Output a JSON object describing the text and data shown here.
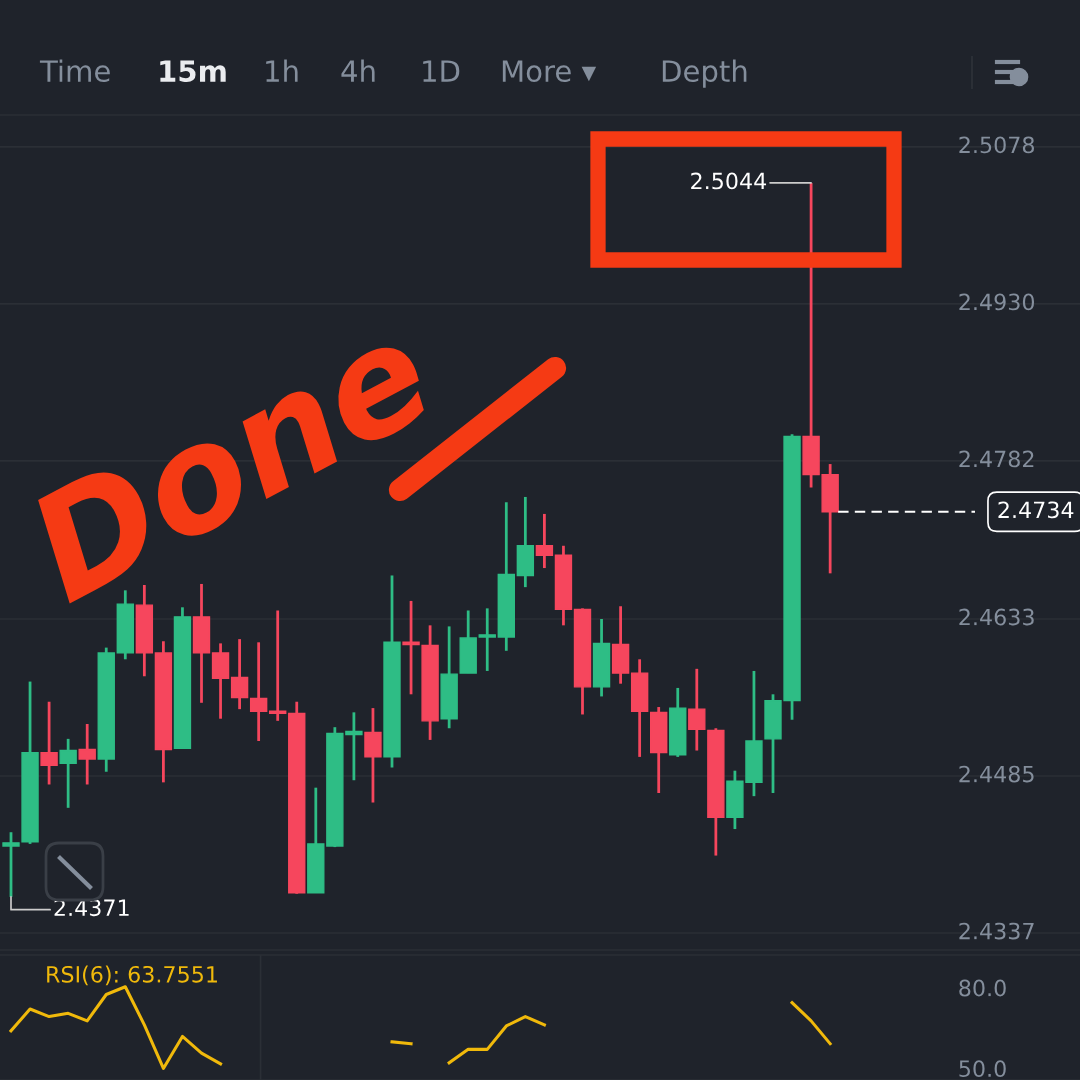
{
  "chart_data": [
    {
      "type": "other",
      "annotations": [
        "Time",
        "15m",
        "1h",
        "4h",
        "1D",
        "More ▾",
        "Depth"
      ]
    },
    {
      "type": "candlestick",
      "categories": [
        null,
        null,
        null,
        null,
        null,
        null,
        null,
        null,
        null,
        null,
        null,
        null,
        null,
        null,
        null,
        null,
        null,
        null,
        null,
        null,
        null,
        null,
        null,
        null,
        null,
        null,
        null,
        null,
        null,
        null,
        null,
        null,
        null,
        null,
        null,
        null,
        null,
        null,
        null,
        null,
        null,
        null,
        null,
        null
      ],
      "ohlc": [
        [
          2.4419,
          2.4432,
          2.4371,
          2.4422
        ],
        [
          2.4423,
          2.4574,
          2.4421,
          2.4507
        ],
        [
          2.4507,
          2.4555,
          2.4477,
          2.4495
        ],
        [
          2.4497,
          2.452,
          2.4455,
          2.4509
        ],
        [
          2.451,
          2.4534,
          2.4477,
          2.4501
        ],
        [
          2.4501,
          2.4606,
          2.4489,
          2.4601
        ],
        [
          2.4601,
          2.466,
          2.4595,
          2.4647
        ],
        [
          2.4646,
          2.4665,
          2.4579,
          2.4601
        ],
        [
          2.4601,
          2.4612,
          2.4479,
          2.451
        ],
        [
          2.4511,
          2.4644,
          2.4511,
          2.4635
        ],
        [
          2.4635,
          2.4666,
          2.4554,
          2.4601
        ],
        [
          2.4601,
          2.461,
          2.4539,
          2.4577
        ],
        [
          2.4578,
          2.4614,
          2.4548,
          2.4559
        ],
        [
          2.4558,
          2.4611,
          2.4518,
          2.4546
        ],
        [
          2.4546,
          2.4641,
          2.4537,
          2.4544
        ],
        [
          2.4544,
          2.4555,
          2.4374,
          2.4375
        ],
        [
          2.4375,
          2.4474,
          2.4375,
          2.4421
        ],
        [
          2.4419,
          2.4531,
          2.4418,
          2.4525
        ],
        [
          2.4524,
          2.4545,
          2.4481,
          2.4527
        ],
        [
          2.4526,
          2.4549,
          2.446,
          2.4503
        ],
        [
          2.4503,
          2.4674,
          2.4493,
          2.4611
        ],
        [
          2.4611,
          2.465,
          2.4562,
          2.4609
        ],
        [
          2.4608,
          2.4627,
          2.4519,
          2.4537
        ],
        [
          2.4539,
          2.4626,
          2.453,
          2.4581
        ],
        [
          2.4582,
          2.4641,
          2.4582,
          2.4615
        ],
        [
          2.4616,
          2.4643,
          2.4584,
          2.4618
        ],
        [
          2.4616,
          2.4743,
          2.4603,
          2.4675
        ],
        [
          2.4674,
          2.4748,
          2.4663,
          2.4702
        ],
        [
          2.4702,
          2.4732,
          2.4681,
          2.4693
        ],
        [
          2.4693,
          2.4702,
          2.4627,
          2.4642
        ],
        [
          2.4642,
          2.4643,
          2.4543,
          2.4569
        ],
        [
          2.4569,
          2.4633,
          2.456,
          2.461
        ],
        [
          2.4609,
          2.4645,
          2.4572,
          2.4582
        ],
        [
          2.4582,
          2.4595,
          2.4503,
          2.4546
        ],
        [
          2.4545,
          2.455,
          2.4469,
          2.4507
        ],
        [
          2.4505,
          2.4568,
          2.4503,
          2.4549
        ],
        [
          2.4548,
          2.4586,
          2.4509,
          2.4529
        ],
        [
          2.4528,
          2.453,
          2.441,
          2.4446
        ],
        [
          2.4446,
          2.449,
          2.4435,
          2.448
        ],
        [
          2.4479,
          2.4584,
          2.4466,
          2.4518
        ],
        [
          2.452,
          2.4562,
          2.4469,
          2.4556
        ],
        [
          2.4556,
          2.4807,
          2.4538,
          2.4805
        ],
        [
          2.4805,
          2.5044,
          2.4757,
          2.4769
        ],
        [
          2.4769,
          2.4779,
          2.4676,
          2.4734
        ]
      ],
      "colors": [
        "#2ebd85",
        "#2ebd85",
        "#f6465d",
        "#2ebd85",
        "#f6465d",
        "#2ebd85",
        "#2ebd85",
        "#f6465d",
        "#f6465d",
        "#2ebd85",
        "#f6465d",
        "#f6465d",
        "#f6465d",
        "#f6465d",
        "#f6465d",
        "#f6465d",
        "#2ebd85",
        "#2ebd85",
        "#2ebd85",
        "#f6465d",
        "#2ebd85",
        "#f6465d",
        "#f6465d",
        "#2ebd85",
        "#2ebd85",
        "#2ebd85",
        "#2ebd85",
        "#2ebd85",
        "#f6465d",
        "#f6465d",
        "#f6465d",
        "#2ebd85",
        "#f6465d",
        "#f6465d",
        "#f6465d",
        "#2ebd85",
        "#f6465d",
        "#f6465d",
        "#2ebd85",
        "#2ebd85",
        "#2ebd85",
        "#2ebd85",
        "#f6465d",
        "#f6465d"
      ],
      "ylim": [
        2.4321,
        2.5108
      ],
      "yticks": [
        2.4337,
        2.4485,
        2.4633,
        2.4782,
        {
          "value": 2.493,
          "label": "2.4930"
        },
        2.5078
      ],
      "tick_labels": "y",
      "grid": "y",
      "ref_lines": [
        {
          "axis": "y",
          "value": 2.4734,
          "label": "2.4734",
          "color": "#ffffff",
          "line_style": "dashed"
        }
      ],
      "annotations": [
        "Done",
        "2.5044",
        "2.4371"
      ]
    },
    {
      "type": "line",
      "categories": [
        null,
        null,
        null,
        null,
        null,
        null,
        null,
        null,
        null,
        null,
        null,
        null,
        null,
        null,
        null,
        null,
        null,
        null,
        null,
        null,
        null,
        null,
        null,
        null,
        null,
        null,
        null,
        null,
        null,
        null,
        null,
        null,
        null,
        null,
        null,
        null,
        null,
        null,
        null,
        null,
        null,
        null,
        null,
        null
      ],
      "series": [
        {
          "color": "#f0b90b",
          "values": [
            64.8,
            72.9,
            70.1,
            71.3,
            68.5,
            78.3,
            81.2,
            67.0,
            50.8,
            62.7,
            56.5,
            52.5,
            null,
            null,
            null,
            null,
            null,
            null,
            null,
            null,
            60.7,
            60.0,
            null,
            52.9,
            57.9,
            57.9,
            66.6,
            70.1,
            67.0,
            null,
            null,
            null,
            null,
            null,
            null,
            null,
            null,
            null,
            null,
            null,
            null,
            75.3,
            68.5,
            60.0
          ]
        }
      ],
      "ylim": [
        46.5,
        93
      ],
      "yticks": [
        {
          "value": 80,
          "label": "80.0"
        },
        {
          "value": 50,
          "label": "50.0"
        }
      ],
      "tick_labels": "y",
      "marker": "none",
      "annotations": [
        "RSI(6): 63.7551"
      ]
    }
  ]
}
